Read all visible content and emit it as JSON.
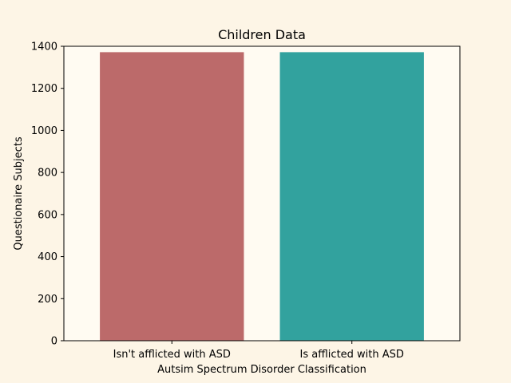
{
  "chart_data": {
    "type": "bar",
    "title": "Children Data",
    "xlabel": "Autsim Spectrum Disorder Classification",
    "ylabel": "Questionaire Subjects",
    "categories": [
      "Isn't afflicted with ASD",
      "Is afflicted with ASD"
    ],
    "values": [
      1372,
      1372
    ],
    "colors": [
      "#bc6a6a",
      "#32a29e"
    ],
    "ylim": [
      0,
      1400
    ],
    "yticks": [
      0,
      200,
      400,
      600,
      800,
      1000,
      1200,
      1400
    ],
    "ytick_labels": [
      "0",
      "200",
      "400",
      "600",
      "800",
      "1000",
      "1200",
      "1400"
    ],
    "grid": false,
    "legend": false,
    "figure_background": "#fdf5e6",
    "plot_background": "#fffbf2"
  }
}
